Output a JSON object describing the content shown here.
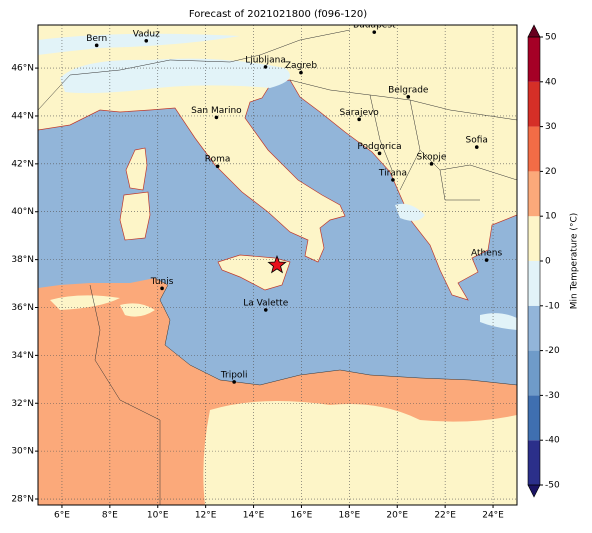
{
  "title": "Forecast of 2021021800 (f096-120)",
  "map": {
    "xlim": [
      5,
      25
    ],
    "ylim": [
      27.75,
      47.8
    ],
    "xticks": [
      {
        "value": 6,
        "label": "6°E"
      },
      {
        "value": 8,
        "label": "8°E"
      },
      {
        "value": 10,
        "label": "10°E"
      },
      {
        "value": 12,
        "label": "12°E"
      },
      {
        "value": 14,
        "label": "14°E"
      },
      {
        "value": 16,
        "label": "16°E"
      },
      {
        "value": 18,
        "label": "18°E"
      },
      {
        "value": 20,
        "label": "20°E"
      },
      {
        "value": 22,
        "label": "22°E"
      },
      {
        "value": 24,
        "label": "24°E"
      }
    ],
    "yticks": [
      {
        "value": 28,
        "label": "28°N"
      },
      {
        "value": 30,
        "label": "30°N"
      },
      {
        "value": 32,
        "label": "32°N"
      },
      {
        "value": 34,
        "label": "34°N"
      },
      {
        "value": 36,
        "label": "36°N"
      },
      {
        "value": 38,
        "label": "38°N"
      },
      {
        "value": 40,
        "label": "40°N"
      },
      {
        "value": 42,
        "label": "42°N"
      },
      {
        "value": 44,
        "label": "44°N"
      },
      {
        "value": 46,
        "label": "46°N"
      }
    ],
    "cities": [
      {
        "name": "Bern",
        "lon": 7.45,
        "lat": 46.95
      },
      {
        "name": "Vaduz",
        "lon": 9.52,
        "lat": 47.14
      },
      {
        "name": "Budapest",
        "lon": 19.04,
        "lat": 47.5
      },
      {
        "name": "Ljubljana",
        "lon": 14.5,
        "lat": 46.05
      },
      {
        "name": "Zagreb",
        "lon": 15.98,
        "lat": 45.81
      },
      {
        "name": "Belgrade",
        "lon": 20.46,
        "lat": 44.8
      },
      {
        "name": "Sarajevo",
        "lon": 18.41,
        "lat": 43.86
      },
      {
        "name": "San Marino",
        "lon": 12.45,
        "lat": 43.94
      },
      {
        "name": "Sofia",
        "lon": 23.32,
        "lat": 42.7
      },
      {
        "name": "Podgorica",
        "lon": 19.26,
        "lat": 42.44
      },
      {
        "name": "Skopje",
        "lon": 21.43,
        "lat": 42.0
      },
      {
        "name": "Roma",
        "lon": 12.5,
        "lat": 41.9
      },
      {
        "name": "Tirana",
        "lon": 19.82,
        "lat": 41.33
      },
      {
        "name": "Athens",
        "lon": 23.73,
        "lat": 37.98
      },
      {
        "name": "Tunis",
        "lon": 10.18,
        "lat": 36.8
      },
      {
        "name": "La Valette",
        "lon": 14.51,
        "lat": 35.9
      },
      {
        "name": "Tripoli",
        "lon": 13.19,
        "lat": 32.89
      }
    ],
    "marker": {
      "lon": 14.98,
      "lat": 37.77
    }
  },
  "colorbar": {
    "label": "Min Temperature (°C)",
    "ticks": [
      -50,
      -40,
      -30,
      -20,
      -10,
      0,
      10,
      20,
      30,
      40,
      50
    ],
    "colors": [
      "#2b2f8a",
      "#3f6fb0",
      "#6f9bc9",
      "#92b5d9",
      "#e2f3f8",
      "#fdf5c8",
      "#fba97a",
      "#f26c46",
      "#d52f27",
      "#a50026"
    ],
    "under_color": "#1b1464",
    "over_color": "#67001f"
  }
}
